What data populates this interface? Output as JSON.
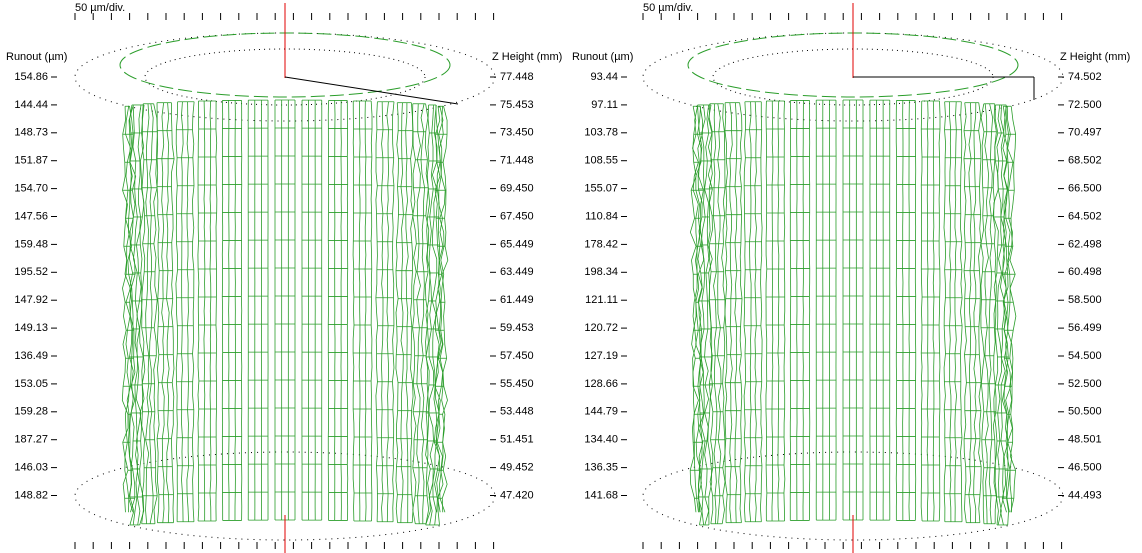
{
  "panels": [
    {
      "scale": "50 µm/div.",
      "runout_title": "Runout (µm)",
      "z_title": "Z Height (mm)",
      "runout": [
        "154.86",
        "144.44",
        "148.73",
        "151.87",
        "154.70",
        "147.56",
        "159.48",
        "195.52",
        "147.92",
        "149.13",
        "136.49",
        "153.05",
        "159.28",
        "187.27",
        "146.03",
        "148.82"
      ],
      "z": [
        "77.448",
        "75.453",
        "73.450",
        "71.448",
        "69.450",
        "67.450",
        "65.449",
        "63.449",
        "61.449",
        "59.453",
        "57.450",
        "55.450",
        "53.448",
        "51.451",
        "49.452",
        "47.420"
      ]
    },
    {
      "scale": "50 µm/div.",
      "runout_title": "Runout (µm)",
      "z_title": "Z Height (mm)",
      "runout": [
        "93.44",
        "97.11",
        "103.78",
        "108.55",
        "155.07",
        "110.84",
        "178.42",
        "198.34",
        "121.11",
        "120.72",
        "127.19",
        "128.66",
        "144.79",
        "134.40",
        "136.35",
        "141.68"
      ],
      "z": [
        "74.502",
        "72.500",
        "70.497",
        "68.502",
        "66.500",
        "64.502",
        "62.498",
        "60.498",
        "58.500",
        "56.499",
        "54.500",
        "52.500",
        "50.500",
        "48.501",
        "46.500",
        "44.493"
      ]
    }
  ]
}
